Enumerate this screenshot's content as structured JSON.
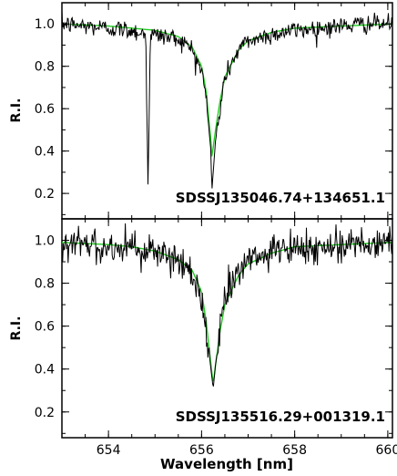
{
  "colors": {
    "observed": "#000000",
    "model": "#22cc22",
    "frame": "#000000",
    "background": "#ffffff"
  },
  "chart_data": [
    {
      "type": "line",
      "label": "SDSSJ135046.74+134651.1",
      "ylabel": "R.I.",
      "xlim": [
        653,
        660.1
      ],
      "ylim": [
        0.08,
        1.1
      ],
      "yticks": [
        0.2,
        0.4,
        0.6,
        0.8,
        1.0
      ],
      "ytick_labels": [
        "0.2",
        "0.4",
        "0.6",
        "0.8",
        "1.0"
      ],
      "line_center": 656.22,
      "noise_sigma": 0.022,
      "series": [
        {
          "role": "observed",
          "x": [
            653.0,
            653.5,
            654.0,
            654.5,
            654.8,
            654.85,
            654.9,
            655.0,
            655.5,
            655.8,
            656.0,
            656.1,
            656.2,
            656.22,
            656.3,
            656.4,
            656.5,
            656.8,
            657.0,
            657.5,
            658.0,
            658.5,
            659.0,
            659.5,
            660.1
          ],
          "y": [
            1.0,
            0.99,
            0.98,
            0.97,
            0.95,
            0.25,
            0.94,
            0.95,
            0.93,
            0.88,
            0.78,
            0.65,
            0.4,
            0.21,
            0.45,
            0.6,
            0.75,
            0.88,
            0.92,
            0.95,
            0.97,
            0.98,
            0.99,
            1.0,
            1.0
          ]
        },
        {
          "role": "model",
          "x": [
            653.0,
            654.0,
            654.5,
            655.0,
            655.5,
            655.8,
            656.0,
            656.1,
            656.2,
            656.22,
            656.3,
            656.4,
            656.5,
            656.8,
            657.0,
            657.5,
            658.0,
            659.0,
            660.1
          ],
          "y": [
            1.0,
            0.99,
            0.98,
            0.97,
            0.94,
            0.89,
            0.8,
            0.68,
            0.45,
            0.37,
            0.5,
            0.64,
            0.75,
            0.88,
            0.92,
            0.96,
            0.98,
            0.99,
            1.0
          ]
        }
      ]
    },
    {
      "type": "line",
      "label": "SDSSJ135516.29+001319.1",
      "ylabel": "R.I.",
      "xlabel": "Wavelength [nm]",
      "xlim": [
        653,
        660.1
      ],
      "ylim": [
        0.08,
        1.1
      ],
      "xticks": [
        654,
        656,
        658,
        660
      ],
      "xtick_labels": [
        "654",
        "656",
        "658",
        "660"
      ],
      "yticks": [
        0.2,
        0.4,
        0.6,
        0.8,
        1.0
      ],
      "ytick_labels": [
        "0.2",
        "0.4",
        "0.6",
        "0.8",
        "1.0"
      ],
      "line_center": 656.25,
      "noise_sigma": 0.04,
      "series": [
        {
          "role": "observed",
          "x": [
            653.0,
            653.5,
            654.0,
            654.5,
            655.0,
            655.5,
            655.8,
            656.0,
            656.1,
            656.2,
            656.25,
            656.3,
            656.4,
            656.5,
            656.8,
            657.0,
            657.5,
            658.0,
            658.5,
            659.0,
            659.5,
            660.1
          ],
          "y": [
            0.99,
            0.98,
            0.97,
            0.97,
            0.95,
            0.9,
            0.84,
            0.74,
            0.6,
            0.4,
            0.31,
            0.42,
            0.58,
            0.72,
            0.86,
            0.9,
            0.94,
            0.96,
            0.97,
            0.98,
            0.99,
            0.99
          ]
        },
        {
          "role": "model",
          "x": [
            653.0,
            654.0,
            654.5,
            655.0,
            655.5,
            655.8,
            656.0,
            656.1,
            656.2,
            656.25,
            656.3,
            656.4,
            656.5,
            656.8,
            657.0,
            657.5,
            658.0,
            659.0,
            660.1
          ],
          "y": [
            0.99,
            0.98,
            0.97,
            0.95,
            0.91,
            0.86,
            0.76,
            0.62,
            0.42,
            0.33,
            0.42,
            0.58,
            0.7,
            0.84,
            0.89,
            0.94,
            0.97,
            0.98,
            0.99
          ]
        }
      ]
    }
  ]
}
